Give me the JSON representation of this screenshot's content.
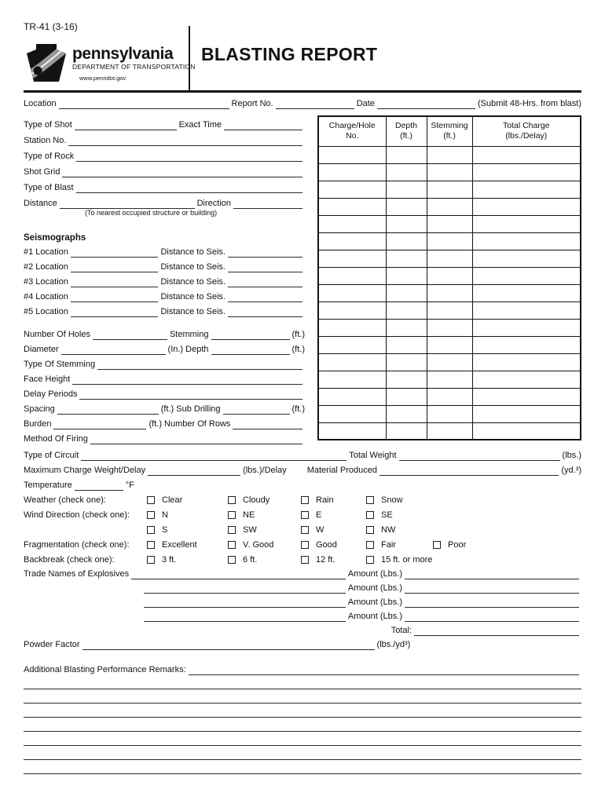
{
  "header": {
    "form_code": "TR-41 (3-16)",
    "title": "BLASTING REPORT",
    "logo": {
      "name": "pennsylvania",
      "department": "DEPARTMENT OF TRANSPORTATION",
      "website": "www.penndot.gov"
    }
  },
  "top_row": {
    "location": "Location",
    "report_no": "Report No.",
    "date": "Date",
    "submit_note": "(Submit 48-Hrs. from blast)"
  },
  "shot_info": {
    "type_of_shot": "Type of Shot",
    "exact_time": "Exact Time",
    "station_no": "Station No.",
    "type_of_rock": "Type of Rock",
    "shot_grid": "Shot Grid",
    "type_of_blast": "Type of Blast",
    "distance": "Distance",
    "direction": "Direction",
    "nearest_note": "(To nearest occupied structure or building)"
  },
  "seismographs": {
    "heading": "Seismographs",
    "distance_label": "Distance to Seis.",
    "rows": [
      {
        "label": "#1 Location"
      },
      {
        "label": "#2 Location"
      },
      {
        "label": "#3 Location"
      },
      {
        "label": "#4 Location"
      },
      {
        "label": "#5 Location"
      }
    ]
  },
  "drilling": {
    "number_of_holes": "Number Of Holes",
    "stemming": "Stemming",
    "ft": "(ft.)",
    "diameter": "Diameter",
    "in_depth": "(In.) Depth",
    "type_of_stemming": "Type Of Stemming",
    "face_height": "Face Height",
    "delay_periods": "Delay Periods",
    "spacing": "Spacing",
    "ft_sub_drilling": "(ft.) Sub Drilling",
    "burden": "Burden",
    "ft_number_of_rows": "(ft.) Number Of Rows",
    "method_of_firing": "Method Of Firing"
  },
  "charge_table": {
    "headers": [
      "Charge/Hole\nNo.",
      "Depth\n(ft.)",
      "Stemming\n(ft.)",
      "Total Charge\n(lbs./Delay)"
    ],
    "row_count": 17
  },
  "totals": {
    "type_of_circuit": "Type of Circuit",
    "total_weight": "Total Weight",
    "lbs": "(lbs.)",
    "max_charge": "Maximum Charge Weight/Delay",
    "lbs_delay": "(lbs.)/Delay",
    "material_produced": "Material Produced",
    "yd3": "(yd.³)",
    "temperature": "Temperature",
    "deg_f": "°F"
  },
  "checks": {
    "weather": {
      "label": "Weather (check one):",
      "options": [
        "Clear",
        "Cloudy",
        "Rain",
        "Snow"
      ]
    },
    "wind": {
      "label": "Wind Direction (check one):",
      "options": [
        "N",
        "NE",
        "E",
        "SE"
      ]
    },
    "wind_row2": {
      "options": [
        "S",
        "SW",
        "W",
        "NW"
      ]
    },
    "fragmentation": {
      "label": "Fragmentation (check one):",
      "options": [
        "Excellent",
        "V. Good",
        "Good",
        "Fair",
        "Poor"
      ]
    },
    "backbreak": {
      "label": "Backbreak (check one):",
      "options": [
        "3 ft.",
        "6 ft.",
        "12 ft.",
        "15 ft. or more"
      ]
    }
  },
  "explosives": {
    "label": "Trade Names of Explosives",
    "amount_label": "Amount (Lbs.)",
    "total_label": "Total:",
    "powder_factor": "Powder Factor",
    "lbs_yd3": "(lbs./yd³)"
  },
  "remarks": {
    "label": "Additional Blasting Performance Remarks:",
    "line_count": 7
  }
}
